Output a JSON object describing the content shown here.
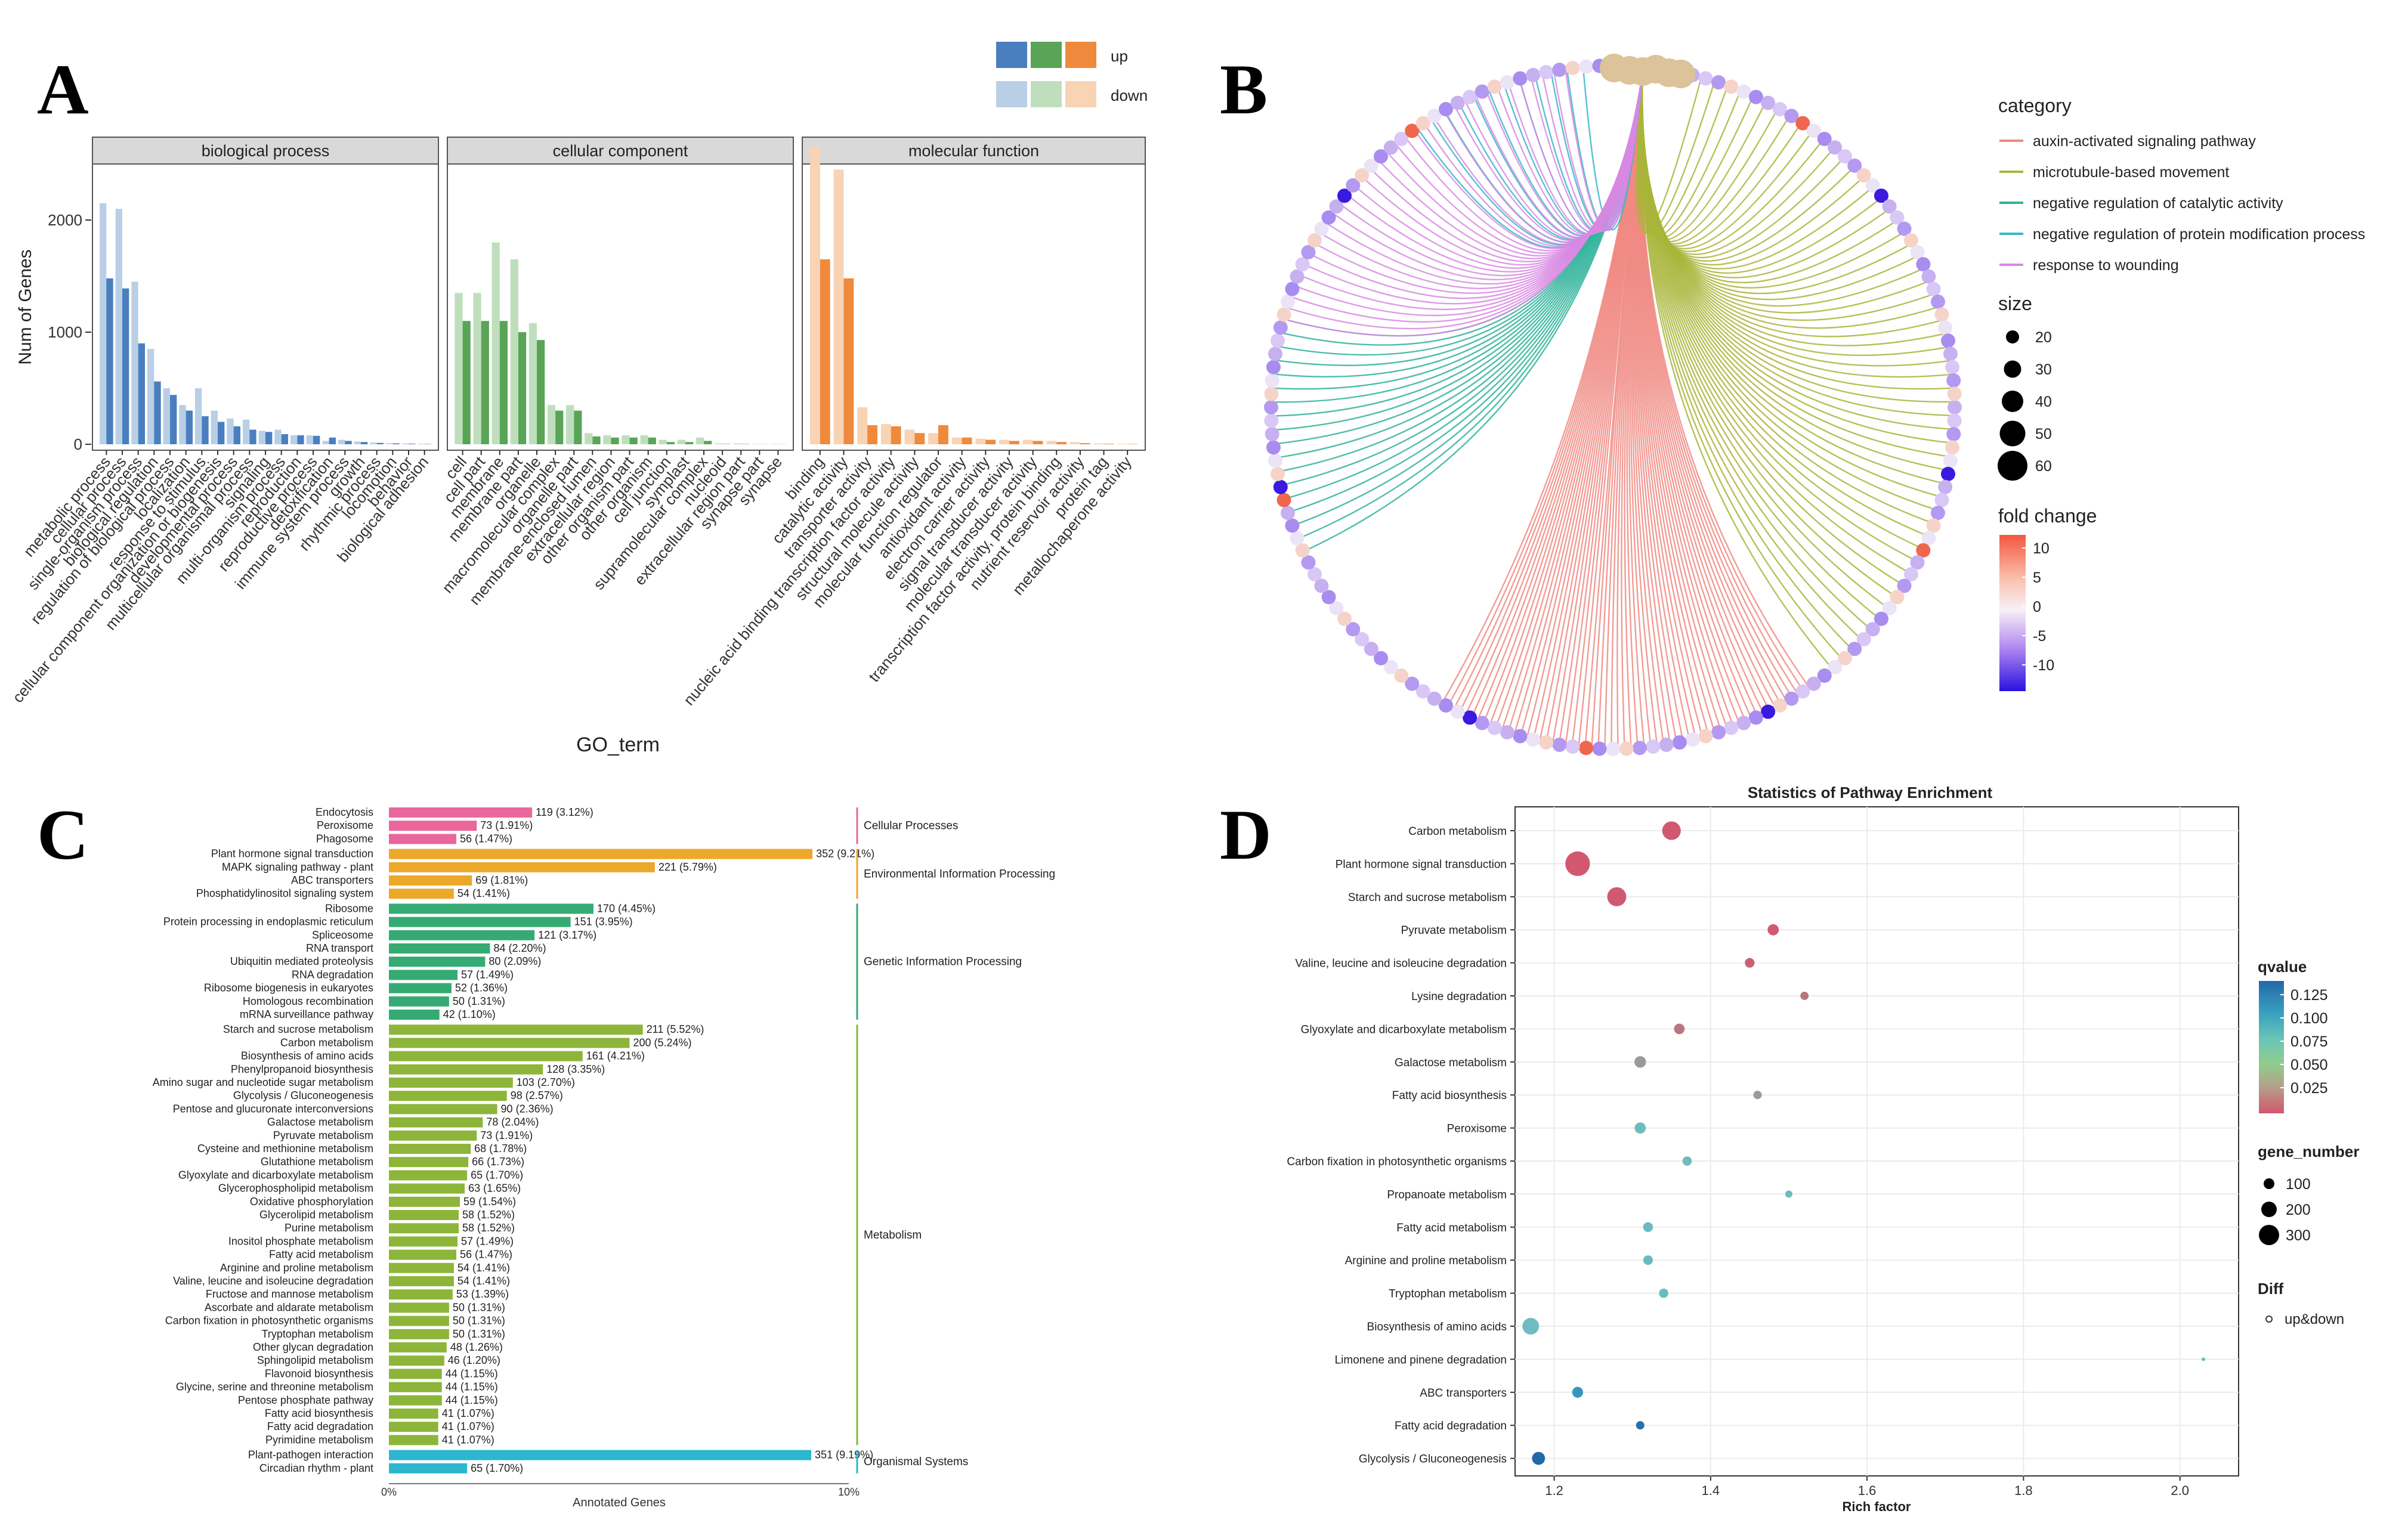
{
  "panels": {
    "A": "A",
    "B": "B",
    "C": "C",
    "D": "D"
  },
  "colors": {
    "bp_up": "#4a7fbf",
    "bp_down": "#b9cfe6",
    "cc_up": "#5aa457",
    "cc_down": "#bfdfbc",
    "mf_up": "#ef8a3c",
    "mf_down": "#f8d3b4",
    "cat_pink": "#e8679c",
    "cat_orange": "#eba82a",
    "cat_green": "#35ab73",
    "cat_olive": "#8db53a",
    "cat_cyan": "#2cb6cf"
  },
  "chart_data": [
    {
      "panel": "A",
      "type": "bar",
      "title": "",
      "xlabel": "GO_term",
      "ylabel": "Num of Genes",
      "ylim": [
        0,
        2500
      ],
      "yticks": [
        0,
        1000,
        2000
      ],
      "legend": {
        "up": "up",
        "down": "down",
        "placement": "top-right"
      },
      "facets": [
        {
          "name": "biological process",
          "categories": [
            "metabolic process",
            "cellular process",
            "single-organism process",
            "biological regulation",
            "regulation of biological process",
            "localization",
            "response to stimulus",
            "cellular component organization or biogenesis",
            "developmental process",
            "multicellular organismal process",
            "signaling",
            "multi-organism process",
            "reproduction",
            "reproductive process",
            "detoxification",
            "immune system process",
            "growth",
            "rhythmic process",
            "locomotion",
            "behavior",
            "biological adhesion"
          ],
          "series": [
            {
              "name": "down",
              "values": [
                2150,
                2100,
                1450,
                850,
                500,
                350,
                500,
                300,
                230,
                220,
                120,
                130,
                80,
                80,
                30,
                40,
                25,
                15,
                10,
                8,
                5
              ]
            },
            {
              "name": "up",
              "values": [
                1480,
                1390,
                900,
                560,
                440,
                300,
                250,
                200,
                160,
                130,
                110,
                90,
                80,
                75,
                60,
                30,
                20,
                12,
                8,
                5,
                3
              ]
            }
          ]
        },
        {
          "name": "cellular component",
          "categories": [
            "cell",
            "cell part",
            "membrane",
            "membrane part",
            "organelle",
            "macromolecular complex",
            "organelle part",
            "membrane-enclosed lumen",
            "extracellular region",
            "other organism part",
            "other organism",
            "cell junction",
            "symplast",
            "supramolecular complex",
            "nucleoid",
            "extracellular region part",
            "synapse part",
            "synapse"
          ],
          "series": [
            {
              "name": "down",
              "values": [
                1350,
                1350,
                1800,
                1650,
                1080,
                350,
                350,
                100,
                80,
                80,
                80,
                40,
                40,
                60,
                8,
                8,
                3,
                3
              ]
            },
            {
              "name": "up",
              "values": [
                1100,
                1100,
                1100,
                1000,
                930,
                300,
                300,
                70,
                60,
                60,
                60,
                20,
                20,
                30,
                3,
                3,
                1,
                1
              ]
            }
          ]
        },
        {
          "name": "molecular function",
          "categories": [
            "binding",
            "catalytic activity",
            "transporter activity",
            "nucleic acid binding transcription factor activity",
            "structural molecule activity",
            "molecular function regulator",
            "antioxidant activity",
            "electron carrier activity",
            "signal transducer activity",
            "molecular transducer activity",
            "transcription factor activity, protein binding",
            "nutrient reservoir activity",
            "protein tag",
            "metallochaperone activity"
          ],
          "series": [
            {
              "name": "down",
              "values": [
                2650,
                2450,
                330,
                180,
                130,
                100,
                60,
                50,
                40,
                40,
                30,
                20,
                8,
                5
              ]
            },
            {
              "name": "up",
              "values": [
                1650,
                1480,
                170,
                160,
                100,
                170,
                60,
                40,
                30,
                30,
                20,
                10,
                5,
                3
              ]
            }
          ]
        }
      ]
    },
    {
      "panel": "B",
      "type": "network",
      "title": "",
      "legend": {
        "category_title": "category",
        "categories": [
          {
            "name": "auxin-activated signaling pathway",
            "color": "#f08a82",
            "arcs": 60
          },
          {
            "name": "microtubule-based movement",
            "color": "#a9b53a",
            "arcs": 55
          },
          {
            "name": "negative regulation of catalytic activity",
            "color": "#2fb39a",
            "arcs": 18
          },
          {
            "name": "negative regulation of protein modification process",
            "color": "#35b7c9",
            "arcs": 12
          },
          {
            "name": "response to wounding",
            "color": "#d888e3",
            "arcs": 35
          }
        ],
        "size_title": "size",
        "sizes": [
          20,
          30,
          40,
          50,
          60
        ],
        "fold_title": "fold change",
        "fold_ticks": [
          10,
          5,
          0,
          -5,
          -10
        ]
      }
    },
    {
      "panel": "C",
      "type": "bar",
      "orientation": "horizontal",
      "title": "",
      "xlabel": "Annotated Genes",
      "xticks": [
        "0%",
        "10%"
      ],
      "xlim": [
        0,
        10
      ],
      "groups": [
        {
          "name": "Cellular Processes",
          "color": "#e8679c",
          "pathways": [
            {
              "name": "Endocytosis",
              "value": 119,
              "label": "119 (3.12%)"
            },
            {
              "name": "Peroxisome",
              "value": 73,
              "label": "73 (1.91%)"
            },
            {
              "name": "Phagosome",
              "value": 56,
              "label": "56 (1.47%)"
            }
          ]
        },
        {
          "name": "Environmental Information Processing",
          "color": "#eba82a",
          "pathways": [
            {
              "name": "Plant hormone signal transduction",
              "value": 352,
              "label": "352 (9.21%)"
            },
            {
              "name": "MAPK signaling pathway - plant",
              "value": 221,
              "label": "221 (5.79%)"
            },
            {
              "name": "ABC transporters",
              "value": 69,
              "label": "69 (1.81%)"
            },
            {
              "name": "Phosphatidylinositol signaling system",
              "value": 54,
              "label": "54 (1.41%)"
            }
          ]
        },
        {
          "name": "Genetic Information Processing",
          "color": "#35ab73",
          "pathways": [
            {
              "name": "Ribosome",
              "value": 170,
              "label": "170 (4.45%)"
            },
            {
              "name": "Protein processing in endoplasmic reticulum",
              "value": 151,
              "label": "151 (3.95%)"
            },
            {
              "name": "Spliceosome",
              "value": 121,
              "label": "121 (3.17%)"
            },
            {
              "name": "RNA transport",
              "value": 84,
              "label": "84 (2.20%)"
            },
            {
              "name": "Ubiquitin mediated proteolysis",
              "value": 80,
              "label": "80 (2.09%)"
            },
            {
              "name": "RNA degradation",
              "value": 57,
              "label": "57 (1.49%)"
            },
            {
              "name": "Ribosome biogenesis in eukaryotes",
              "value": 52,
              "label": "52 (1.36%)"
            },
            {
              "name": "Homologous recombination",
              "value": 50,
              "label": "50 (1.31%)"
            },
            {
              "name": "mRNA surveillance pathway",
              "value": 42,
              "label": "42 (1.10%)"
            }
          ]
        },
        {
          "name": "Metabolism",
          "color": "#8db53a",
          "pathways": [
            {
              "name": "Starch and sucrose metabolism",
              "value": 211,
              "label": "211 (5.52%)"
            },
            {
              "name": "Carbon metabolism",
              "value": 200,
              "label": "200 (5.24%)"
            },
            {
              "name": "Biosynthesis of amino acids",
              "value": 161,
              "label": "161 (4.21%)"
            },
            {
              "name": "Phenylpropanoid biosynthesis",
              "value": 128,
              "label": "128 (3.35%)"
            },
            {
              "name": "Amino sugar and nucleotide sugar metabolism",
              "value": 103,
              "label": "103 (2.70%)"
            },
            {
              "name": "Glycolysis / Gluconeogenesis",
              "value": 98,
              "label": "98 (2.57%)"
            },
            {
              "name": "Pentose and glucuronate interconversions",
              "value": 90,
              "label": "90 (2.36%)"
            },
            {
              "name": "Galactose metabolism",
              "value": 78,
              "label": "78 (2.04%)"
            },
            {
              "name": "Pyruvate metabolism",
              "value": 73,
              "label": "73 (1.91%)"
            },
            {
              "name": "Cysteine and methionine metabolism",
              "value": 68,
              "label": "68 (1.78%)"
            },
            {
              "name": "Glutathione metabolism",
              "value": 66,
              "label": "66 (1.73%)"
            },
            {
              "name": "Glyoxylate and dicarboxylate metabolism",
              "value": 65,
              "label": "65 (1.70%)"
            },
            {
              "name": "Glycerophospholipid metabolism",
              "value": 63,
              "label": "63 (1.65%)"
            },
            {
              "name": "Oxidative phosphorylation",
              "value": 59,
              "label": "59 (1.54%)"
            },
            {
              "name": "Glycerolipid metabolism",
              "value": 58,
              "label": "58 (1.52%)"
            },
            {
              "name": "Purine metabolism",
              "value": 58,
              "label": "58 (1.52%)"
            },
            {
              "name": "Inositol phosphate metabolism",
              "value": 57,
              "label": "57 (1.49%)"
            },
            {
              "name": "Fatty acid metabolism",
              "value": 56,
              "label": "56 (1.47%)"
            },
            {
              "name": "Arginine and proline metabolism",
              "value": 54,
              "label": "54 (1.41%)"
            },
            {
              "name": "Valine, leucine and isoleucine degradation",
              "value": 54,
              "label": "54 (1.41%)"
            },
            {
              "name": "Fructose and mannose metabolism",
              "value": 53,
              "label": "53 (1.39%)"
            },
            {
              "name": "Ascorbate and aldarate metabolism",
              "value": 50,
              "label": "50 (1.31%)"
            },
            {
              "name": "Carbon fixation in photosynthetic organisms",
              "value": 50,
              "label": "50 (1.31%)"
            },
            {
              "name": "Tryptophan metabolism",
              "value": 50,
              "label": "50 (1.31%)"
            },
            {
              "name": "Other glycan degradation",
              "value": 48,
              "label": "48 (1.26%)"
            },
            {
              "name": "Sphingolipid metabolism",
              "value": 46,
              "label": "46 (1.20%)"
            },
            {
              "name": "Flavonoid biosynthesis",
              "value": 44,
              "label": "44 (1.15%)"
            },
            {
              "name": "Glycine, serine and threonine metabolism",
              "value": 44,
              "label": "44 (1.15%)"
            },
            {
              "name": "Pentose phosphate pathway",
              "value": 44,
              "label": "44 (1.15%)"
            },
            {
              "name": "Fatty acid biosynthesis",
              "value": 41,
              "label": "41 (1.07%)"
            },
            {
              "name": "Fatty acid degradation",
              "value": 41,
              "label": "41 (1.07%)"
            },
            {
              "name": "Pyrimidine metabolism",
              "value": 41,
              "label": "41 (1.07%)"
            }
          ]
        },
        {
          "name": "Organismal Systems",
          "color": "#2cb6cf",
          "pathways": [
            {
              "name": "Plant-pathogen interaction",
              "value": 351,
              "label": "351 (9.19%)"
            },
            {
              "name": "Circadian rhythm - plant",
              "value": 65,
              "label": "65 (1.70%)"
            }
          ]
        }
      ]
    },
    {
      "panel": "D",
      "type": "scatter",
      "title": "Statistics of Pathway Enrichment",
      "xlabel": "Rich factor",
      "ylabel": "",
      "xlim": [
        1.15,
        2.075
      ],
      "xticks": [
        1.2,
        1.4,
        1.6,
        1.8,
        2.0
      ],
      "xtick_labels": [
        "1.2",
        "1.4",
        "1.6",
        "1.8",
        "2.0"
      ],
      "legend": {
        "qvalue_title": "qvalue",
        "qvalue_ticks": [
          "0.125",
          "0.100",
          "0.075",
          "0.050",
          "0.025"
        ],
        "gene_title": "gene_number",
        "gene_ticks": [
          100,
          200,
          300
        ],
        "diff_title": "Diff",
        "diff_item": "up&down"
      },
      "points": [
        {
          "pathway": "Carbon metabolism",
          "rich": 1.35,
          "qvalue": 0.005,
          "genes": 200
        },
        {
          "pathway": "Plant hormone signal transduction",
          "rich": 1.23,
          "qvalue": 0.003,
          "genes": 352
        },
        {
          "pathway": "Starch and sucrose metabolism",
          "rich": 1.28,
          "qvalue": 0.008,
          "genes": 211
        },
        {
          "pathway": "Pyruvate metabolism",
          "rich": 1.48,
          "qvalue": 0.01,
          "genes": 73
        },
        {
          "pathway": "Valine, leucine and isoleucine degradation",
          "rich": 1.45,
          "qvalue": 0.02,
          "genes": 54
        },
        {
          "pathway": "Lysine degradation",
          "rich": 1.52,
          "qvalue": 0.03,
          "genes": 40
        },
        {
          "pathway": "Glyoxylate and dicarboxylate metabolism",
          "rich": 1.36,
          "qvalue": 0.03,
          "genes": 65
        },
        {
          "pathway": "Galactose metabolism",
          "rich": 1.31,
          "qvalue": 0.04,
          "genes": 78
        },
        {
          "pathway": "Fatty acid biosynthesis",
          "rich": 1.46,
          "qvalue": 0.04,
          "genes": 41
        },
        {
          "pathway": "Peroxisome",
          "rich": 1.31,
          "qvalue": 0.06,
          "genes": 73
        },
        {
          "pathway": "Carbon fixation in photosynthetic organisms",
          "rich": 1.37,
          "qvalue": 0.06,
          "genes": 50
        },
        {
          "pathway": "Propanoate metabolism",
          "rich": 1.5,
          "qvalue": 0.06,
          "genes": 30
        },
        {
          "pathway": "Fatty acid metabolism",
          "rich": 1.32,
          "qvalue": 0.065,
          "genes": 56
        },
        {
          "pathway": "Arginine and proline metabolism",
          "rich": 1.32,
          "qvalue": 0.065,
          "genes": 54
        },
        {
          "pathway": "Tryptophan metabolism",
          "rich": 1.34,
          "qvalue": 0.065,
          "genes": 50
        },
        {
          "pathway": "Biosynthesis of amino acids",
          "rich": 1.17,
          "qvalue": 0.06,
          "genes": 161
        },
        {
          "pathway": "Limonene and pinene degradation",
          "rich": 2.03,
          "qvalue": 0.07,
          "genes": 5
        },
        {
          "pathway": "ABC transporters",
          "rich": 1.23,
          "qvalue": 0.1,
          "genes": 69
        },
        {
          "pathway": "Fatty acid degradation",
          "rich": 1.31,
          "qvalue": 0.12,
          "genes": 41
        },
        {
          "pathway": "Glycolysis / Gluconeogenesis",
          "rich": 1.18,
          "qvalue": 0.125,
          "genes": 98
        }
      ]
    }
  ]
}
